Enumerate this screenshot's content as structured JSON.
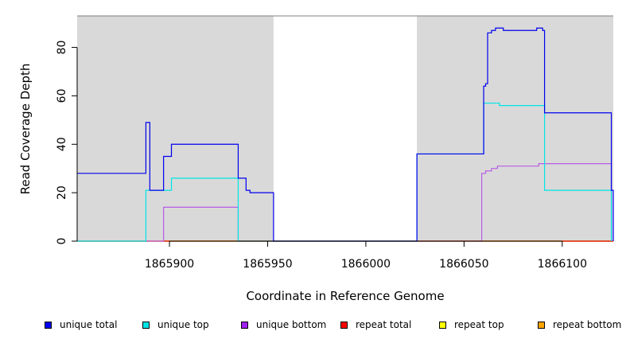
{
  "chart_data": {
    "type": "line",
    "title": "",
    "xlabel": "Coordinate in Reference Genome",
    "ylabel": "Read Coverage Depth",
    "xlim": [
      1865853,
      1866126
    ],
    "ylim": [
      0,
      93
    ],
    "x_ticks": [
      1865900,
      1865950,
      1866000,
      1866050,
      1866100
    ],
    "x_tick_labels": [
      "1865900",
      "1865950",
      "1866000",
      "1866050",
      "1866100"
    ],
    "y_ticks": [
      0,
      20,
      40,
      60,
      80
    ],
    "y_tick_labels": [
      "0",
      "20",
      "40",
      "60",
      "80"
    ],
    "grid": false,
    "legend_position": "bottom",
    "shaded_regions": [
      {
        "start": 1865853,
        "end": 1865953,
        "color": "#d9d9d9"
      },
      {
        "start": 1866026,
        "end": 1866126,
        "color": "#d9d9d9"
      }
    ],
    "series": [
      {
        "name": "unique total",
        "color": "#0000ee",
        "points": [
          [
            1865853,
            28
          ],
          [
            1865888,
            28
          ],
          [
            1865888,
            49
          ],
          [
            1865890,
            49
          ],
          [
            1865890,
            21
          ],
          [
            1865897,
            21
          ],
          [
            1865897,
            35
          ],
          [
            1865901,
            35
          ],
          [
            1865901,
            40
          ],
          [
            1865935,
            40
          ],
          [
            1865935,
            26
          ],
          [
            1865939,
            26
          ],
          [
            1865939,
            21
          ],
          [
            1865941,
            21
          ],
          [
            1865941,
            20
          ],
          [
            1865953,
            20
          ],
          [
            1865953,
            0
          ],
          [
            1866026,
            0
          ],
          [
            1866026,
            36
          ],
          [
            1866060,
            36
          ],
          [
            1866060,
            64
          ],
          [
            1866061,
            64
          ],
          [
            1866061,
            65
          ],
          [
            1866062,
            65
          ],
          [
            1866062,
            86
          ],
          [
            1866064,
            86
          ],
          [
            1866064,
            87
          ],
          [
            1866066,
            87
          ],
          [
            1866066,
            88
          ],
          [
            1866070,
            88
          ],
          [
            1866070,
            87
          ],
          [
            1866087,
            87
          ],
          [
            1866087,
            88
          ],
          [
            1866090,
            88
          ],
          [
            1866090,
            87
          ],
          [
            1866091,
            87
          ],
          [
            1866091,
            53
          ],
          [
            1866125,
            53
          ],
          [
            1866125,
            21
          ],
          [
            1866126,
            21
          ],
          [
            1866126,
            0
          ]
        ]
      },
      {
        "name": "unique top",
        "color": "#00e5e5",
        "points": [
          [
            1865853,
            0
          ],
          [
            1865888,
            0
          ],
          [
            1865888,
            21
          ],
          [
            1865901,
            21
          ],
          [
            1865901,
            26
          ],
          [
            1865935,
            26
          ],
          [
            1865935,
            0
          ],
          [
            1865953,
            0
          ],
          [
            1865953,
            0
          ],
          [
            1866026,
            0
          ],
          [
            1866026,
            36
          ],
          [
            1866060,
            36
          ],
          [
            1866060,
            57
          ],
          [
            1866068,
            57
          ],
          [
            1866068,
            56
          ],
          [
            1866091,
            56
          ],
          [
            1866091,
            21
          ],
          [
            1866125,
            21
          ],
          [
            1866125,
            0
          ]
        ]
      },
      {
        "name": "unique bottom",
        "color": "#b85ee6",
        "points": [
          [
            1865853,
            0
          ],
          [
            1865897,
            0
          ],
          [
            1865897,
            14
          ],
          [
            1865935,
            14
          ],
          [
            1865935,
            0
          ],
          [
            1866059,
            0
          ],
          [
            1866059,
            28
          ],
          [
            1866061,
            28
          ],
          [
            1866061,
            29
          ],
          [
            1866064,
            29
          ],
          [
            1866064,
            30
          ],
          [
            1866067,
            30
          ],
          [
            1866067,
            31
          ],
          [
            1866088,
            31
          ],
          [
            1866088,
            32
          ],
          [
            1866125,
            32
          ],
          [
            1866125,
            0
          ]
        ]
      },
      {
        "name": "repeat total",
        "color": "#dd0000",
        "points": [
          [
            1865853,
            0
          ],
          [
            1866126,
            0
          ]
        ]
      },
      {
        "name": "repeat top",
        "color": "#eeee00",
        "points": [
          [
            1865853,
            0
          ],
          [
            1866126,
            0
          ]
        ]
      },
      {
        "name": "repeat bottom",
        "color": "#f5a000",
        "points": [
          [
            1865853,
            0
          ],
          [
            1866126,
            0
          ]
        ]
      }
    ]
  },
  "legend": [
    {
      "label": "unique total",
      "color": "#0000ee"
    },
    {
      "label": "unique top",
      "color": "#00e5e5"
    },
    {
      "label": "unique bottom",
      "color": "#a020f0"
    },
    {
      "label": "repeat total",
      "color": "#ff0000"
    },
    {
      "label": "repeat top",
      "color": "#ffff00"
    },
    {
      "label": "repeat bottom",
      "color": "#ffa500"
    }
  ]
}
